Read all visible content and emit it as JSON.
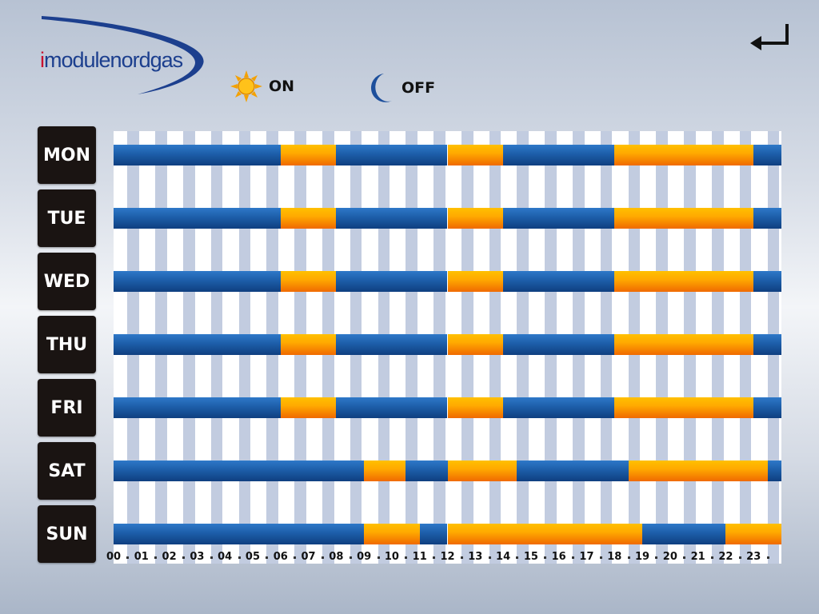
{
  "brand": {
    "prefix": "i",
    "name": "modulenordgas"
  },
  "legend": {
    "on_label": "ON",
    "on_icon": "sun-icon",
    "off_label": "OFF",
    "off_icon": "moon-icon"
  },
  "back_icon": "return-arrow-icon",
  "colors": {
    "on": "#ff9a00",
    "off": "#1d5ea9",
    "day_button": "#1a1412",
    "stripe": "#c2cce0"
  },
  "hours": [
    "00",
    "01",
    "02",
    "03",
    "04",
    "05",
    "06",
    "07",
    "08",
    "09",
    "10",
    "11",
    "12",
    "13",
    "14",
    "15",
    "16",
    "17",
    "18",
    "19",
    "20",
    "21",
    "22",
    "23"
  ],
  "schedule": [
    {
      "day": "MON",
      "on": [
        [
          6,
          8
        ],
        [
          12,
          14
        ],
        [
          18,
          23
        ]
      ]
    },
    {
      "day": "TUE",
      "on": [
        [
          6,
          8
        ],
        [
          12,
          14
        ],
        [
          18,
          23
        ]
      ]
    },
    {
      "day": "WED",
      "on": [
        [
          6,
          8
        ],
        [
          12,
          14
        ],
        [
          18,
          23
        ]
      ]
    },
    {
      "day": "THU",
      "on": [
        [
          6,
          8
        ],
        [
          12,
          14
        ],
        [
          18,
          23
        ]
      ]
    },
    {
      "day": "FRI",
      "on": [
        [
          6,
          8
        ],
        [
          12,
          14
        ],
        [
          18,
          23
        ]
      ]
    },
    {
      "day": "SAT",
      "on": [
        [
          9,
          10.5
        ],
        [
          12,
          14.5
        ],
        [
          18.5,
          23.5
        ]
      ]
    },
    {
      "day": "SUN",
      "on": [
        [
          9,
          11
        ],
        [
          12,
          19
        ],
        [
          22,
          24
        ]
      ]
    }
  ]
}
